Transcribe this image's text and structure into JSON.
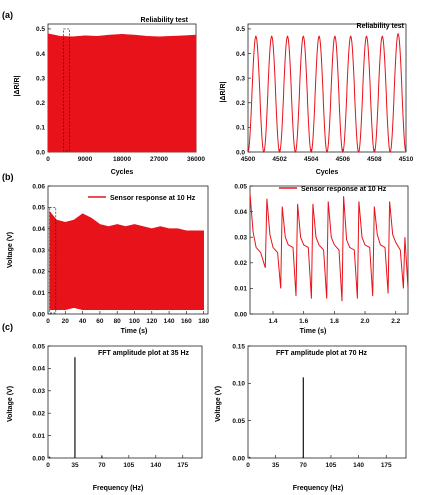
{
  "colors": {
    "trace": "#e8121a",
    "fft": "#111111",
    "axis": "#222222",
    "text": "#111111"
  },
  "panel_labels": [
    "(a)",
    "(b)",
    "(c)"
  ],
  "chart_data": [
    {
      "id": "a_left",
      "type": "area",
      "title": "Reliability test",
      "xlabel": "Cycles",
      "ylabel": "|ΔR/R|",
      "xlim": [
        0,
        36000
      ],
      "ylim": [
        0,
        0.52
      ],
      "xticks": [
        0,
        9000,
        18000,
        27000,
        36000
      ],
      "xtick_labels": [
        "0",
        "9000",
        "18000",
        "27000",
        "36000"
      ],
      "yticks": [
        0.0,
        0.1,
        0.2,
        0.3,
        0.4,
        0.5
      ],
      "ytick_labels": [
        "0.0",
        "0.1",
        "0.2",
        "0.3",
        "0.4",
        "0.5"
      ],
      "envelope_x": [
        0,
        3000,
        6000,
        9000,
        12000,
        15000,
        18000,
        21000,
        24000,
        27000,
        30000,
        33000,
        36000
      ],
      "envelope_top": [
        0.48,
        0.47,
        0.468,
        0.472,
        0.47,
        0.475,
        0.478,
        0.475,
        0.47,
        0.468,
        0.47,
        0.472,
        0.475
      ],
      "envelope_bottom": [
        0.0,
        0.0,
        0.0,
        0.0,
        0.0,
        0.0,
        0.0,
        0.0,
        0.0,
        0.0,
        0.0,
        0.0,
        0.0
      ],
      "inset_box_x": [
        3800,
        5200
      ]
    },
    {
      "id": "a_right",
      "type": "line",
      "title": "Reliability test",
      "xlabel": "Cycles",
      "ylabel": "|ΔR/R|",
      "xlim": [
        4500,
        4510
      ],
      "ylim": [
        0,
        0.52
      ],
      "xticks": [
        4500,
        4502,
        4504,
        4506,
        4508,
        4510
      ],
      "xtick_labels": [
        "4500",
        "4502",
        "4504",
        "4506",
        "4508",
        "4510"
      ],
      "yticks": [
        0.0,
        0.1,
        0.2,
        0.3,
        0.4,
        0.5
      ],
      "ytick_labels": [
        "0.0",
        "0.1",
        "0.2",
        "0.3",
        "0.4",
        "0.5"
      ],
      "peaks_x": [
        4500.5,
        4501.5,
        4502.5,
        4503.5,
        4504.5,
        4505.5,
        4506.5,
        4507.5,
        4508.5,
        4509.5
      ],
      "peaks_y": [
        0.47,
        0.47,
        0.47,
        0.47,
        0.47,
        0.47,
        0.47,
        0.47,
        0.47,
        0.48
      ],
      "trough_y": 0.0
    },
    {
      "id": "b_left",
      "type": "area",
      "legend": "Sensor response at 10 Hz",
      "xlabel": "Time (s)",
      "ylabel": "Voltage (V)",
      "xlim": [
        0,
        185
      ],
      "ylim": [
        0,
        0.06
      ],
      "xticks": [
        0,
        20,
        40,
        60,
        80,
        100,
        120,
        140,
        160,
        180
      ],
      "xtick_labels": [
        "0",
        "20",
        "40",
        "60",
        "80",
        "100",
        "120",
        "140",
        "160",
        "180"
      ],
      "yticks": [
        0.0,
        0.01,
        0.02,
        0.03,
        0.04,
        0.05,
        0.06
      ],
      "ytick_labels": [
        "0.00",
        "0.01",
        "0.02",
        "0.03",
        "0.04",
        "0.05",
        "0.06"
      ],
      "envelope_x": [
        2,
        10,
        20,
        30,
        40,
        50,
        60,
        70,
        80,
        90,
        100,
        110,
        120,
        130,
        140,
        150,
        160,
        170,
        180
      ],
      "envelope_top": [
        0.048,
        0.044,
        0.043,
        0.044,
        0.047,
        0.045,
        0.042,
        0.041,
        0.042,
        0.041,
        0.042,
        0.041,
        0.04,
        0.041,
        0.04,
        0.04,
        0.039,
        0.039,
        0.039
      ],
      "envelope_bottom": [
        0.002,
        0.002,
        0.002,
        0.003,
        0.002,
        0.002,
        0.002,
        0.002,
        0.002,
        0.002,
        0.002,
        0.002,
        0.002,
        0.002,
        0.002,
        0.002,
        0.002,
        0.002,
        0.002
      ],
      "inset_box_x": [
        2,
        9
      ]
    },
    {
      "id": "b_right",
      "type": "line",
      "legend": "Sensor response at 10 Hz",
      "xlabel": "Time (s)",
      "ylabel": "",
      "xlim": [
        1.25,
        2.28
      ],
      "ylim": [
        0,
        0.05
      ],
      "xticks": [
        1.4,
        1.6,
        1.8,
        2.0,
        2.2
      ],
      "xtick_labels": [
        "1.4",
        "1.6",
        "1.8",
        "2.0",
        "2.2"
      ],
      "yticks": [
        0.0,
        0.01,
        0.02,
        0.03,
        0.04,
        0.05
      ],
      "ytick_labels": [
        "0.00",
        "0.01",
        "0.02",
        "0.03",
        "0.04",
        "0.05"
      ],
      "x": [
        1.25,
        1.27,
        1.29,
        1.32,
        1.35,
        1.36,
        1.38,
        1.4,
        1.43,
        1.45,
        1.46,
        1.48,
        1.5,
        1.53,
        1.55,
        1.56,
        1.58,
        1.6,
        1.63,
        1.65,
        1.66,
        1.68,
        1.7,
        1.73,
        1.75,
        1.76,
        1.78,
        1.8,
        1.83,
        1.85,
        1.86,
        1.88,
        1.9,
        1.93,
        1.95,
        1.96,
        1.98,
        2.0,
        2.03,
        2.05,
        2.06,
        2.08,
        2.1,
        2.13,
        2.15,
        2.16,
        2.18,
        2.2,
        2.23,
        2.25,
        2.26,
        2.28
      ],
      "y": [
        0.047,
        0.032,
        0.026,
        0.024,
        0.018,
        0.045,
        0.031,
        0.026,
        0.024,
        0.01,
        0.042,
        0.03,
        0.027,
        0.026,
        0.007,
        0.043,
        0.03,
        0.027,
        0.026,
        0.006,
        0.043,
        0.03,
        0.027,
        0.025,
        0.006,
        0.044,
        0.03,
        0.027,
        0.025,
        0.005,
        0.046,
        0.029,
        0.026,
        0.025,
        0.006,
        0.044,
        0.03,
        0.027,
        0.026,
        0.007,
        0.042,
        0.031,
        0.027,
        0.026,
        0.008,
        0.044,
        0.031,
        0.028,
        0.025,
        0.01,
        0.03,
        0.01
      ]
    },
    {
      "id": "c_left",
      "type": "bar",
      "title": "FFT amplitude plot at 35 Hz",
      "xlabel": "Frequency (Hz)",
      "ylabel": "Voltage (V)",
      "xlim": [
        0,
        200
      ],
      "ylim": [
        0,
        0.05
      ],
      "xticks": [
        0,
        35,
        70,
        105,
        140,
        175
      ],
      "xtick_labels": [
        "0",
        "35",
        "70",
        "105",
        "140",
        "175"
      ],
      "yticks": [
        0.0,
        0.01,
        0.02,
        0.03,
        0.04,
        0.05
      ],
      "ytick_labels": [
        "0.00",
        "0.01",
        "0.02",
        "0.03",
        "0.04",
        "0.05"
      ],
      "peaks": [
        {
          "x": 35,
          "y": 0.045
        },
        {
          "x": 70,
          "y": 0.0008
        },
        {
          "x": 2,
          "y": 0.0006
        }
      ]
    },
    {
      "id": "c_right",
      "type": "bar",
      "title": "FFT amplitude plot at 70 Hz",
      "xlabel": "Frequency (Hz)",
      "ylabel": "Voltage (V)",
      "xlim": [
        0,
        200
      ],
      "ylim": [
        0,
        0.15
      ],
      "xticks": [
        0,
        35,
        70,
        105,
        140,
        175
      ],
      "xtick_labels": [
        "0",
        "35",
        "70",
        "105",
        "140",
        "175"
      ],
      "yticks": [
        0.0,
        0.05,
        0.1,
        0.15
      ],
      "ytick_labels": [
        "0.00",
        "0.05",
        "0.10",
        "0.15"
      ],
      "peaks": [
        {
          "x": 70,
          "y": 0.108
        },
        {
          "x": 2,
          "y": 0.0015
        }
      ]
    }
  ]
}
